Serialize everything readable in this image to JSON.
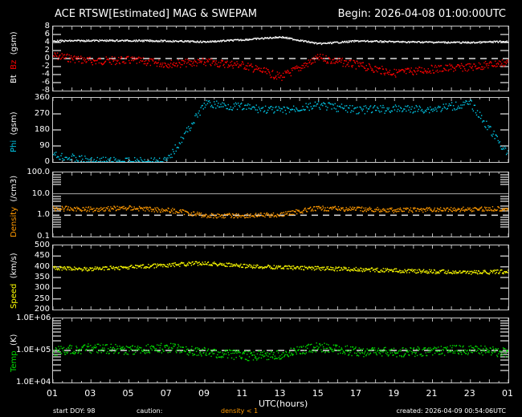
{
  "header": {
    "title": "ACE RTSW[Estimated] MAG & SWEPAM",
    "begin": "Begin: 2026-04-08 01:00:00UTC"
  },
  "footer": {
    "start_doy": "start DOY:  98",
    "caution": "caution:",
    "density_warning": "density < 1",
    "created": "created: 2026-04-09  00:54:06UTC",
    "xlabel": "UTC(hours)"
  },
  "colors": {
    "bt": "#ffffff",
    "bz": "#ff0000",
    "phi": "#00c8e8",
    "density": "#ff9900",
    "speed": "#ffff00",
    "temp": "#00dd00",
    "frame": "#cccccc"
  },
  "panels": {
    "mag": {
      "label_bt": "Bt",
      "label_bz": "Bz",
      "label_unit": "(gsm)",
      "ticks": [
        "8",
        "6",
        "4",
        "2",
        "0",
        "-2",
        "-4",
        "-6",
        "-8"
      ]
    },
    "phi": {
      "label": "Phi",
      "unit": "(gsm)",
      "ticks": [
        "360",
        "270",
        "180",
        "90",
        "0"
      ]
    },
    "density": {
      "label": "Density",
      "unit": "(/cm3)",
      "ticks": [
        "100.0",
        "10.0",
        "1.0",
        "0.1"
      ]
    },
    "speed": {
      "label": "Speed",
      "unit": "(km/s)",
      "ticks": [
        "500",
        "450",
        "400",
        "350",
        "300",
        "250",
        "200"
      ]
    },
    "temp": {
      "label": "Temp",
      "unit": "(K)",
      "ticks": [
        "1.0E+06",
        "1.0E+05",
        "1.0E+04"
      ]
    }
  },
  "xticks": [
    "01",
    "03",
    "05",
    "07",
    "09",
    "11",
    "13",
    "15",
    "17",
    "19",
    "21",
    "23",
    "01"
  ],
  "chart_data": [
    {
      "type": "scatter",
      "title": "ACE RTSW[Estimated] MAG - Bt/Bz",
      "xlabel": "UTC(hours)",
      "ylabel": "Bt Bz (gsm)",
      "ylim": [
        -8,
        8
      ],
      "x": [
        1,
        3,
        5,
        7,
        9,
        11,
        13,
        15,
        17,
        19,
        21,
        23,
        25
      ],
      "series": [
        {
          "name": "Bt",
          "values": [
            4.5,
            4.6,
            4.6,
            4.5,
            4.3,
            4.8,
            5.5,
            3.8,
            4.5,
            4.3,
            4.2,
            4.1,
            4.4
          ]
        },
        {
          "name": "Bz",
          "values": [
            0.8,
            -0.5,
            -0.3,
            -1.2,
            -0.8,
            -1.5,
            -4.5,
            0.3,
            -1.5,
            -3.5,
            -2.5,
            -2.0,
            -0.8
          ]
        }
      ]
    },
    {
      "type": "scatter",
      "title": "Phi (gsm)",
      "ylabel": "Phi (gsm)",
      "ylim": [
        0,
        360
      ],
      "x": [
        1,
        3,
        5,
        7,
        9,
        11,
        13,
        15,
        17,
        19,
        21,
        23,
        25
      ],
      "values": [
        40,
        10,
        5,
        10,
        330,
        310,
        290,
        320,
        295,
        300,
        300,
        330,
        40
      ]
    },
    {
      "type": "scatter",
      "title": "Density (/cm3)",
      "ylabel": "Density (/cm3)",
      "ylim": [
        0.1,
        100
      ],
      "yscale": "log",
      "reference_line": 1.0,
      "x": [
        1,
        3,
        5,
        7,
        9,
        11,
        13,
        15,
        17,
        19,
        21,
        23,
        25
      ],
      "values": [
        2.2,
        2.0,
        2.3,
        1.8,
        1.0,
        1.0,
        1.1,
        2.2,
        2.0,
        1.8,
        1.9,
        2.0,
        2.2
      ]
    },
    {
      "type": "scatter",
      "title": "Speed (km/s)",
      "ylabel": "Speed (km/s)",
      "ylim": [
        200,
        500
      ],
      "x": [
        1,
        3,
        5,
        7,
        9,
        11,
        13,
        15,
        17,
        19,
        21,
        23,
        25
      ],
      "values": [
        395,
        392,
        400,
        410,
        420,
        405,
        400,
        395,
        390,
        385,
        380,
        375,
        380
      ]
    },
    {
      "type": "scatter",
      "title": "Temp (K)",
      "ylabel": "Temp (K)",
      "ylim": [
        10000,
        1000000
      ],
      "yscale": "log",
      "reference_line": 100000,
      "x": [
        1,
        3,
        5,
        7,
        9,
        11,
        13,
        15,
        17,
        19,
        21,
        23,
        25
      ],
      "values": [
        100000,
        120000,
        110000,
        125000,
        90000,
        70000,
        75000,
        130000,
        95000,
        90000,
        100000,
        110000,
        85000
      ]
    }
  ]
}
